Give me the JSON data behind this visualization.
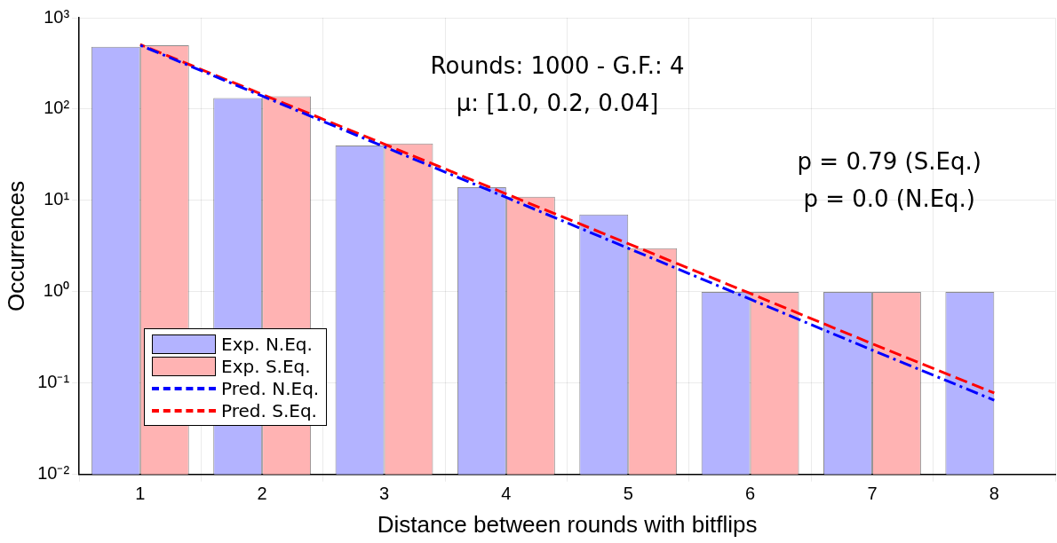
{
  "chart_data": {
    "type": "bar",
    "xlabel": "Distance between rounds with bitflips",
    "ylabel": "Occurrences",
    "categories": [
      "1",
      "2",
      "3",
      "4",
      "5",
      "6",
      "7",
      "8"
    ],
    "series": [
      {
        "name": "Exp. N.Eq.",
        "color": "#b3b3ff",
        "values": [
          480,
          132,
          40,
          14,
          7,
          1,
          1,
          1
        ]
      },
      {
        "name": "Exp. S.Eq.",
        "color": "#ffb3b3",
        "values": [
          500,
          138,
          42,
          11,
          3,
          1,
          1,
          null
        ]
      },
      {
        "name": "Pred. N.Eq.",
        "type": "line",
        "color": "#0000ff",
        "line_style": "dashdot",
        "values": [
          500,
          139,
          38.7,
          10.8,
          3.0,
          0.83,
          0.23,
          0.065
        ]
      },
      {
        "name": "Pred. S.Eq.",
        "type": "line",
        "color": "#ff0000",
        "line_style": "dashed",
        "values": [
          510,
          145,
          41.4,
          11.8,
          3.37,
          0.96,
          0.27,
          0.078
        ]
      }
    ],
    "log": "y",
    "ylim": [
      0.01,
      1000
    ],
    "yticks": [
      {
        "value": 0.01,
        "label": "10⁻²"
      },
      {
        "value": 0.1,
        "label": "10⁻¹"
      },
      {
        "value": 1,
        "label": "10⁰"
      },
      {
        "value": 10,
        "label": "10¹"
      },
      {
        "value": 100,
        "label": "10²"
      },
      {
        "value": 1000,
        "label": "10³"
      }
    ],
    "grid": true,
    "legend": "bottom left",
    "marker": "none",
    "annotations": [
      "Rounds: 1000 - G.F.: 4",
      "μ: [1.0, 0.2, 0.04]",
      "p = 0.79 (S.Eq.)",
      "p = 0.0 (N.Eq.)"
    ]
  }
}
